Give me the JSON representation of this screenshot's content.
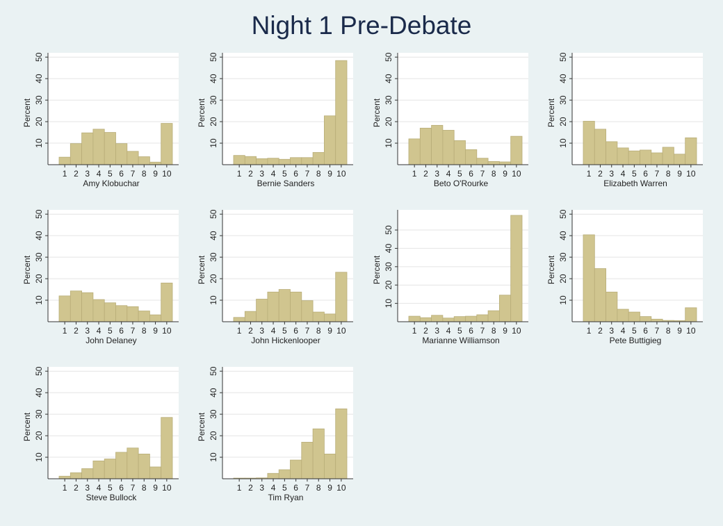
{
  "title": "Night 1 Pre-Debate",
  "colors": {
    "background": "#eaf2f3",
    "plot": "#ffffff",
    "bar_fill": "#d0c58f",
    "bar_stroke": "#b8ad78",
    "grid": "#e4e4e4",
    "title": "#1a2a4a"
  },
  "chart_data": [
    {
      "type": "bar",
      "title": "Amy Klobuchar",
      "xlabel": "Amy Klobuchar",
      "ylabel": "Percent",
      "categories": [
        "1",
        "2",
        "3",
        "4",
        "5",
        "6",
        "7",
        "8",
        "9",
        "10"
      ],
      "values": [
        3.5,
        9.8,
        14.8,
        16.5,
        15.0,
        9.8,
        6.2,
        3.7,
        1.2,
        19.2
      ],
      "ylim": [
        0,
        52
      ],
      "yticks": [
        10,
        20,
        30,
        40,
        50
      ],
      "grid": true
    },
    {
      "type": "bar",
      "title": "Bernie Sanders",
      "xlabel": "Bernie Sanders",
      "ylabel": "Percent",
      "categories": [
        "1",
        "2",
        "3",
        "4",
        "5",
        "6",
        "7",
        "8",
        "9",
        "10"
      ],
      "values": [
        4.3,
        3.8,
        2.8,
        3.0,
        2.5,
        3.3,
        3.3,
        5.7,
        22.7,
        48.4
      ],
      "ylim": [
        0,
        52
      ],
      "yticks": [
        10,
        20,
        30,
        40,
        50
      ],
      "grid": true
    },
    {
      "type": "bar",
      "title": "Beto O'Rourke",
      "xlabel": "Beto O'Rourke",
      "ylabel": "Percent",
      "categories": [
        "1",
        "2",
        "3",
        "4",
        "5",
        "6",
        "7",
        "8",
        "9",
        "10"
      ],
      "values": [
        12.0,
        17.0,
        18.3,
        16.0,
        11.2,
        7.0,
        3.0,
        1.5,
        1.3,
        13.2
      ],
      "ylim": [
        0,
        52
      ],
      "yticks": [
        10,
        20,
        30,
        40,
        50
      ],
      "grid": true
    },
    {
      "type": "bar",
      "title": "Elizabeth Warren",
      "xlabel": "Elizabeth Warren",
      "ylabel": "Percent",
      "categories": [
        "1",
        "2",
        "3",
        "4",
        "5",
        "6",
        "7",
        "8",
        "9",
        "10"
      ],
      "values": [
        20.2,
        16.5,
        10.7,
        7.8,
        6.4,
        6.8,
        5.5,
        8.1,
        4.9,
        12.5
      ],
      "ylim": [
        0,
        52
      ],
      "yticks": [
        10,
        20,
        30,
        40,
        50
      ],
      "grid": true
    },
    {
      "type": "bar",
      "title": "John Delaney",
      "xlabel": "John Delaney",
      "ylabel": "Percent",
      "categories": [
        "1",
        "2",
        "3",
        "4",
        "5",
        "6",
        "7",
        "8",
        "9",
        "10"
      ],
      "values": [
        12.0,
        14.3,
        13.5,
        10.3,
        8.8,
        7.5,
        7.0,
        5.0,
        3.2,
        18.0
      ],
      "ylim": [
        0,
        52
      ],
      "yticks": [
        10,
        20,
        30,
        40,
        50
      ],
      "grid": true
    },
    {
      "type": "bar",
      "title": "John Hickenlooper",
      "xlabel": "John Hickenlooper",
      "ylabel": "Percent",
      "categories": [
        "1",
        "2",
        "3",
        "4",
        "5",
        "6",
        "7",
        "8",
        "9",
        "10"
      ],
      "values": [
        2.0,
        4.8,
        10.5,
        13.8,
        15.0,
        13.8,
        9.8,
        4.5,
        3.6,
        23.0
      ],
      "ylim": [
        0,
        52
      ],
      "yticks": [
        10,
        20,
        30,
        40,
        50
      ],
      "grid": true
    },
    {
      "type": "bar",
      "title": "Marianne Williamson",
      "xlabel": "Marianne Williamson",
      "ylabel": "Percent",
      "categories": [
        "1",
        "2",
        "3",
        "4",
        "5",
        "6",
        "7",
        "8",
        "9",
        "10"
      ],
      "values": [
        3.0,
        2.2,
        3.5,
        2.0,
        2.8,
        3.0,
        3.8,
        6.0,
        14.5,
        58.0
      ],
      "ylim": [
        0,
        61
      ],
      "yticks": [
        10,
        20,
        30,
        40,
        50
      ],
      "grid": true
    },
    {
      "type": "bar",
      "title": "Pete Buttigieg",
      "xlabel": "Pete Buttigieg",
      "ylabel": "Percent",
      "categories": [
        "1",
        "2",
        "3",
        "4",
        "5",
        "6",
        "7",
        "8",
        "9",
        "10"
      ],
      "values": [
        40.4,
        24.7,
        13.8,
        5.8,
        4.5,
        2.4,
        1.2,
        0.6,
        0.5,
        6.5
      ],
      "ylim": [
        0,
        52
      ],
      "yticks": [
        10,
        20,
        30,
        40,
        50
      ],
      "grid": true
    },
    {
      "type": "bar",
      "title": "Steve Bullock",
      "xlabel": "Steve Bullock",
      "ylabel": "Percent",
      "categories": [
        "1",
        "2",
        "3",
        "4",
        "5",
        "6",
        "7",
        "8",
        "9",
        "10"
      ],
      "values": [
        1.2,
        2.8,
        4.7,
        8.3,
        9.2,
        12.3,
        14.3,
        11.5,
        5.5,
        28.5
      ],
      "ylim": [
        0,
        52
      ],
      "yticks": [
        10,
        20,
        30,
        40,
        50
      ],
      "grid": true
    },
    {
      "type": "bar",
      "title": "Tim Ryan",
      "xlabel": "Tim Ryan",
      "ylabel": "Percent",
      "categories": [
        "1",
        "2",
        "3",
        "4",
        "5",
        "6",
        "7",
        "8",
        "9",
        "10"
      ],
      "values": [
        0.3,
        0.3,
        0.4,
        2.5,
        4.2,
        8.7,
        17.0,
        23.2,
        11.5,
        32.5
      ],
      "ylim": [
        0,
        52
      ],
      "yticks": [
        10,
        20,
        30,
        40,
        50
      ],
      "grid": true
    }
  ]
}
